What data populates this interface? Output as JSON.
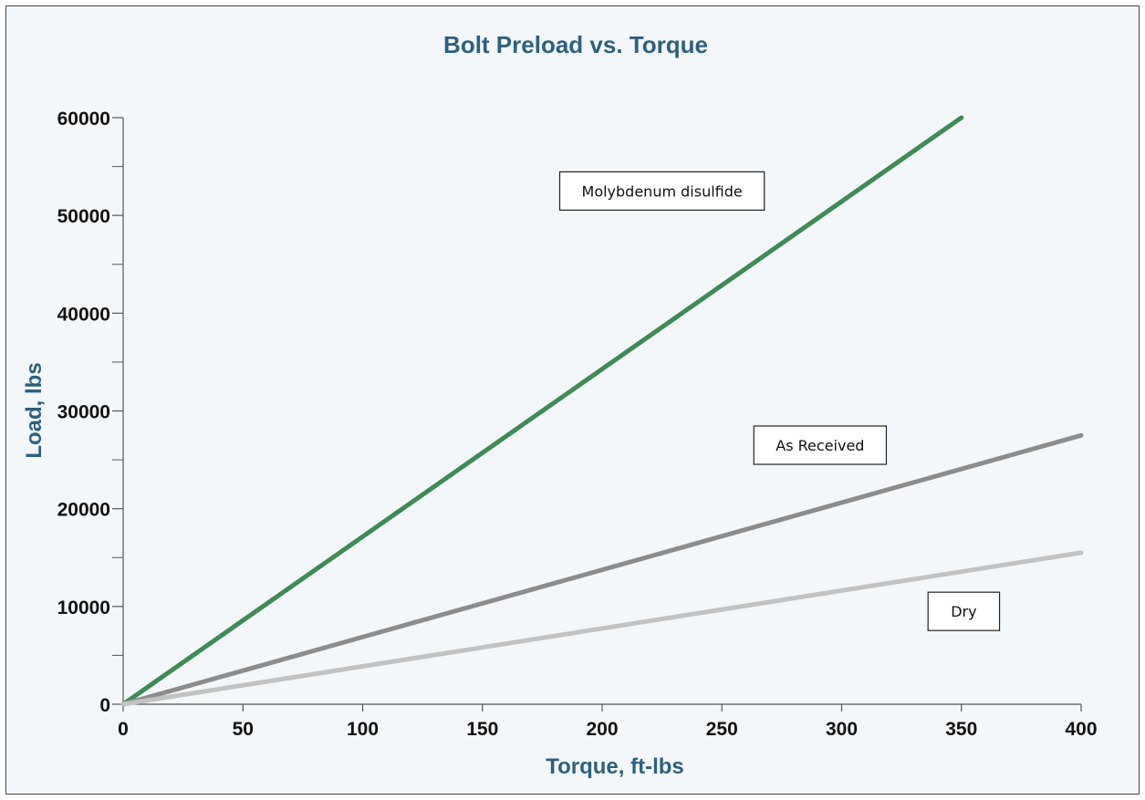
{
  "colors": {
    "background": "#f3f7fa",
    "title": "#2e5f7e",
    "axis_label": "#2e5f7e",
    "tick_text": "#111111",
    "axis_line": "#555555"
  },
  "chart_data": {
    "type": "line",
    "title": "Bolt Preload vs. Torque",
    "xlabel": "Torque, ft-lbs",
    "ylabel": "Load, lbs",
    "xlim": [
      0,
      400
    ],
    "ylim": [
      0,
      60000
    ],
    "x_ticks": [
      0,
      50,
      100,
      150,
      200,
      250,
      300,
      350,
      400
    ],
    "y_ticks": [
      0,
      10000,
      20000,
      30000,
      40000,
      50000,
      60000
    ],
    "y_minor_ticks": [
      5000,
      15000,
      25000,
      35000,
      45000,
      55000
    ],
    "grid": false,
    "series": [
      {
        "name": "Molybdenum disulfide",
        "color": "#3f8a57",
        "x": [
          0,
          350
        ],
        "y": [
          0,
          60000
        ]
      },
      {
        "name": "As Received",
        "color": "#8c8c8c",
        "x": [
          0,
          400
        ],
        "y": [
          0,
          27500
        ]
      },
      {
        "name": "Dry",
        "color": "#c2c2c2",
        "x": [
          0,
          400
        ],
        "y": [
          0,
          15500
        ]
      }
    ],
    "annotations": [
      {
        "text": "Molybdenum disulfide",
        "x": 225,
        "y": 52500
      },
      {
        "text": "As Received",
        "x": 291,
        "y": 26500
      },
      {
        "text": "Dry",
        "x": 351,
        "y": 9500
      }
    ]
  }
}
